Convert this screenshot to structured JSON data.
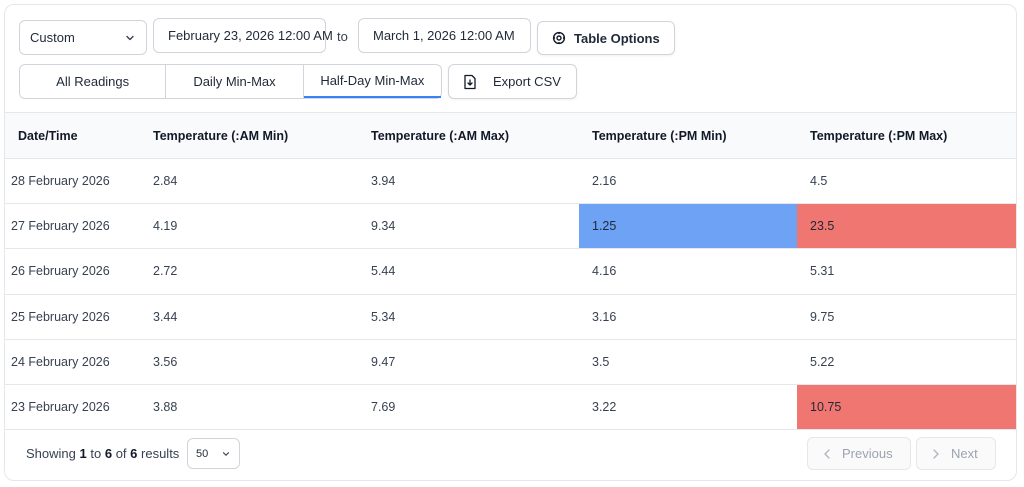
{
  "filters": {
    "range_select": "Custom",
    "date_from": "February 23, 2026 12:00 AM",
    "to_label": "to",
    "date_to": "March 1, 2026 12:00 AM",
    "table_options_label": "Table Options"
  },
  "tabs": [
    {
      "label": "All Readings",
      "active": false
    },
    {
      "label": "Daily Min-Max",
      "active": false
    },
    {
      "label": "Half-Day Min-Max",
      "active": true
    }
  ],
  "export_label": "Export CSV",
  "table": {
    "columns": [
      "Date/Time",
      "Temperature (:AM Min)",
      "Temperature (:AM Max)",
      "Temperature (:PM Min)",
      "Temperature (:PM Max)"
    ],
    "rows": [
      {
        "cells": [
          "28 February 2026",
          "2.84",
          "3.94",
          "2.16",
          "4.5"
        ],
        "highlight": [
          "",
          "",
          "",
          "",
          ""
        ]
      },
      {
        "cells": [
          "27 February 2026",
          "4.19",
          "9.34",
          "1.25",
          "23.5"
        ],
        "highlight": [
          "",
          "",
          "",
          "low",
          "high"
        ]
      },
      {
        "cells": [
          "26 February 2026",
          "2.72",
          "5.44",
          "4.16",
          "5.31"
        ],
        "highlight": [
          "",
          "",
          "",
          "",
          ""
        ]
      },
      {
        "cells": [
          "25 February 2026",
          "3.44",
          "5.34",
          "3.16",
          "9.75"
        ],
        "highlight": [
          "",
          "",
          "",
          "",
          ""
        ]
      },
      {
        "cells": [
          "24 February 2026",
          "3.56",
          "9.47",
          "3.5",
          "5.22"
        ],
        "highlight": [
          "",
          "",
          "",
          "",
          ""
        ]
      },
      {
        "cells": [
          "23 February 2026",
          "3.88",
          "7.69",
          "3.22",
          "10.75"
        ],
        "highlight": [
          "",
          "",
          "",
          "",
          "high"
        ]
      }
    ]
  },
  "footer": {
    "showing_prefix": "Showing",
    "from": "1",
    "to_word": "to",
    "to": "6",
    "of_word": "of",
    "total": "6",
    "results_word": "results",
    "per_page": "50",
    "previous_label": "Previous",
    "next_label": "Next"
  },
  "colors": {
    "accent": "#3b82f6",
    "low_highlight": "#6ea2f5",
    "high_highlight": "#f07672"
  },
  "icons": {
    "range_select": "chevron-down-icon",
    "table_options": "gear-icon",
    "export": "file-download-icon",
    "per_page": "chevron-down-icon",
    "previous": "chevron-left-icon",
    "next": "chevron-right-icon"
  }
}
